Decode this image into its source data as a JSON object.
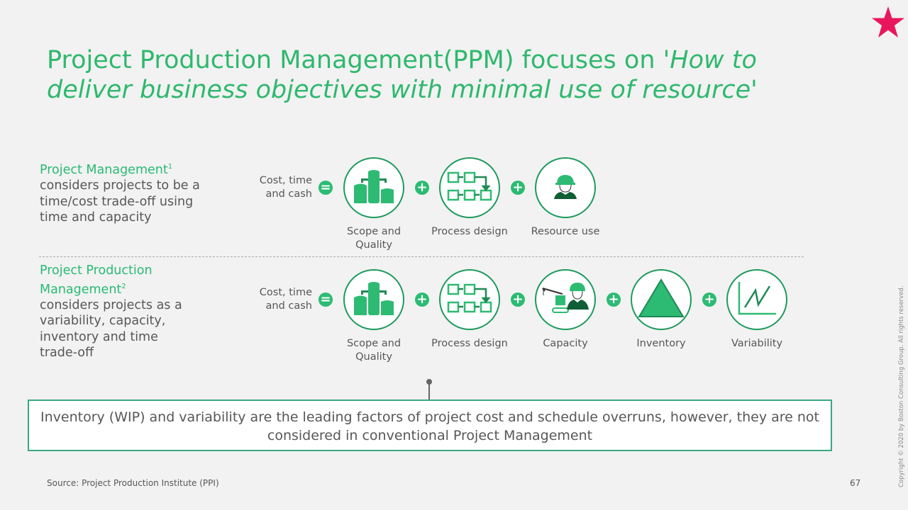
{
  "title": {
    "normal": "Project Production Management(PPM) focuses on ",
    "italic": "'How to deliver business objectives with minimal use of resource'"
  },
  "row1": {
    "heading": "Project Management",
    "sup": "1",
    "text": " considers projects to be a time/cost trade-off using time and capacity",
    "cost": "Cost, time and cash",
    "items": [
      {
        "label": "Scope and Quality",
        "icon": "tanks-icon"
      },
      {
        "label": "Process design",
        "icon": "process-flow-icon"
      },
      {
        "label": "Resource use",
        "icon": "worker-icon"
      }
    ]
  },
  "row2": {
    "heading": "Project Production Management",
    "sup": "2",
    "text": " considers projects as a variability, capacity, inventory and time trade-off",
    "cost": "Cost, time and cash",
    "items": [
      {
        "label": "Scope and Quality",
        "icon": "tanks-icon"
      },
      {
        "label": "Process design",
        "icon": "process-flow-icon"
      },
      {
        "label": "Capacity",
        "icon": "crane-worker-icon"
      },
      {
        "label": "Inventory",
        "icon": "triangle-icon"
      },
      {
        "label": "Variability",
        "icon": "line-chart-icon"
      }
    ]
  },
  "operators": {
    "equals": "=",
    "plus": "+"
  },
  "callout": "Inventory (WIP) and variability are the leading factors of project cost and schedule overruns, however, they are not considered in conventional Project Management",
  "source": "Source: Project Production Institute (PPI)",
  "page_number": "67",
  "copyright": "Copyright © 2020 by Boston Consulting Group. All rights reserved.",
  "colors": {
    "accent": "#2fb86e",
    "star": "#e8175d",
    "border": "#1f9a5f"
  }
}
